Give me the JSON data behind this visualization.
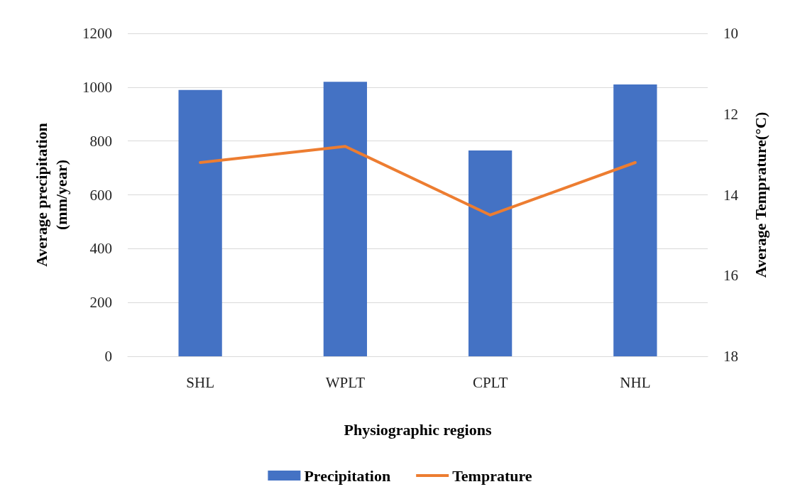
{
  "chart_data": {
    "type": "bar",
    "xlabel": "Physiographic regions",
    "ylabel": "Average precipitation\n(mm/year)",
    "y2label": "Average Temprature(°C)",
    "categories": [
      "SHL",
      "WPLT",
      "CPLT",
      "NHL"
    ],
    "series": [
      {
        "name": "Precipitation",
        "color": "#4472c4",
        "values": [
          990,
          1020,
          765,
          1010
        ]
      },
      {
        "name": "Temprature",
        "type": "line",
        "axis": "y2",
        "color": "#ed7d31",
        "marker": "none",
        "values": [
          13.2,
          12.8,
          14.5,
          13.2
        ]
      }
    ],
    "ylim": [
      0,
      1200
    ],
    "yticks": [
      0,
      200,
      400,
      600,
      800,
      1000,
      1200
    ],
    "y2lim": [
      18,
      10
    ],
    "y2ticks": [
      10,
      12,
      14,
      16,
      18
    ],
    "grid": "y",
    "legend": "bottom"
  }
}
